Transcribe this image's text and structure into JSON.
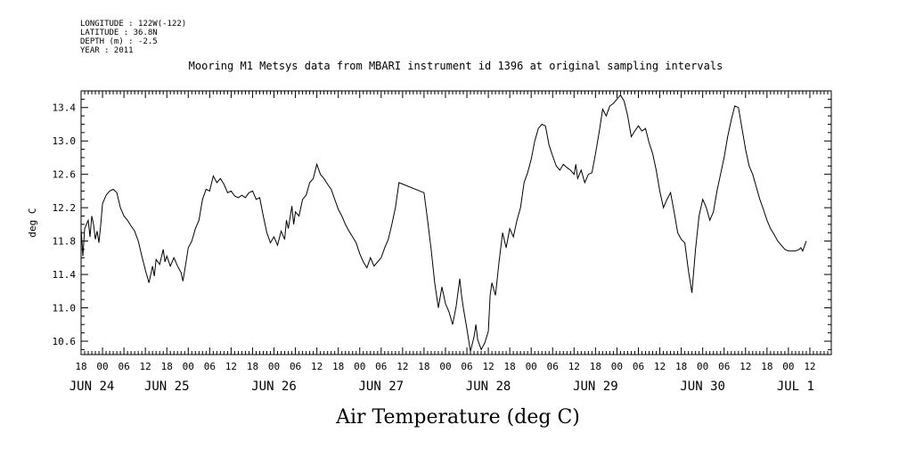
{
  "header": {
    "longitude": "LONGITUDE : 122W(-122)",
    "latitude": "LATITUDE : 36.8N",
    "depth": "DEPTH (m) : -2.5",
    "year": "YEAR : 2011"
  },
  "chart_data": {
    "type": "line",
    "title": "Mooring M1 Metsys data from MBARI instrument id 1396 at original sampling intervals",
    "xlabel": "Air Temperature (deg C)",
    "ylabel": "deg C",
    "ylim": [
      10.44,
      13.6
    ],
    "yticks": [
      10.6,
      11.0,
      11.4,
      11.8,
      12.2,
      12.6,
      13.0,
      13.4
    ],
    "ytick_labels": [
      "10.6",
      "11.0",
      "11.4",
      "11.8",
      "12.2",
      "12.6",
      "13.0",
      "13.4"
    ],
    "x_unit": "hours since JUN 24 00:00",
    "xlim": [
      -6,
      204
    ],
    "hour_ticks": [
      {
        "hour": -6,
        "label": "18"
      },
      {
        "hour": 0,
        "label": "00"
      },
      {
        "hour": 6,
        "label": "06"
      },
      {
        "hour": 12,
        "label": "12"
      },
      {
        "hour": 18,
        "label": "18"
      },
      {
        "hour": 24,
        "label": "00"
      },
      {
        "hour": 30,
        "label": "06"
      },
      {
        "hour": 36,
        "label": "12"
      },
      {
        "hour": 42,
        "label": "18"
      },
      {
        "hour": 48,
        "label": "00"
      },
      {
        "hour": 54,
        "label": "06"
      },
      {
        "hour": 60,
        "label": "12"
      },
      {
        "hour": 66,
        "label": "18"
      },
      {
        "hour": 72,
        "label": "00"
      },
      {
        "hour": 78,
        "label": "06"
      },
      {
        "hour": 84,
        "label": "12"
      },
      {
        "hour": 90,
        "label": "18"
      },
      {
        "hour": 96,
        "label": "00"
      },
      {
        "hour": 102,
        "label": "06"
      },
      {
        "hour": 108,
        "label": "12"
      },
      {
        "hour": 114,
        "label": "18"
      },
      {
        "hour": 120,
        "label": "00"
      },
      {
        "hour": 126,
        "label": "06"
      },
      {
        "hour": 132,
        "label": "12"
      },
      {
        "hour": 138,
        "label": "18"
      },
      {
        "hour": 144,
        "label": "00"
      },
      {
        "hour": 150,
        "label": "06"
      },
      {
        "hour": 156,
        "label": "12"
      },
      {
        "hour": 162,
        "label": "18"
      },
      {
        "hour": 168,
        "label": "00"
      },
      {
        "hour": 174,
        "label": "06"
      },
      {
        "hour": 180,
        "label": "12"
      },
      {
        "hour": 186,
        "label": "18"
      },
      {
        "hour": 192,
        "label": "00"
      },
      {
        "hour": 198,
        "label": "12"
      }
    ],
    "date_labels": [
      {
        "hour": -3,
        "label": "JUN 24"
      },
      {
        "hour": 18,
        "label": "JUN 25"
      },
      {
        "hour": 48,
        "label": "JUN 26"
      },
      {
        "hour": 78,
        "label": "JUN 27"
      },
      {
        "hour": 108,
        "label": "JUN 28"
      },
      {
        "hour": 138,
        "label": "JUN 29"
      },
      {
        "hour": 168,
        "label": "JUN 30"
      },
      {
        "hour": 194,
        "label": "JUL  1"
      }
    ],
    "series": [
      {
        "points": [
          [
            -6,
            11.95
          ],
          [
            -5.5,
            11.62
          ],
          [
            -5,
            11.95
          ],
          [
            -4,
            12.05
          ],
          [
            -3.5,
            11.85
          ],
          [
            -3,
            12.1
          ],
          [
            -2.5,
            12.0
          ],
          [
            -2,
            11.82
          ],
          [
            -1.5,
            11.92
          ],
          [
            -1,
            11.78
          ],
          [
            -0.5,
            12.0
          ],
          [
            0,
            12.25
          ],
          [
            1,
            12.35
          ],
          [
            2,
            12.4
          ],
          [
            3,
            12.42
          ],
          [
            4,
            12.38
          ],
          [
            5,
            12.2
          ],
          [
            6,
            12.1
          ],
          [
            7,
            12.05
          ],
          [
            8,
            11.98
          ],
          [
            9,
            11.92
          ],
          [
            10,
            11.8
          ],
          [
            11,
            11.62
          ],
          [
            12,
            11.45
          ],
          [
            13,
            11.3
          ],
          [
            14,
            11.5
          ],
          [
            14.5,
            11.38
          ],
          [
            15,
            11.58
          ],
          [
            16,
            11.52
          ],
          [
            17,
            11.7
          ],
          [
            17.5,
            11.55
          ],
          [
            18,
            11.62
          ],
          [
            19,
            11.5
          ],
          [
            20,
            11.6
          ],
          [
            21,
            11.5
          ],
          [
            22,
            11.42
          ],
          [
            22.5,
            11.32
          ],
          [
            23,
            11.45
          ],
          [
            24,
            11.72
          ],
          [
            25,
            11.8
          ],
          [
            26,
            11.95
          ],
          [
            27,
            12.05
          ],
          [
            28,
            12.3
          ],
          [
            29,
            12.42
          ],
          [
            30,
            12.4
          ],
          [
            31,
            12.58
          ],
          [
            32,
            12.5
          ],
          [
            33,
            12.55
          ],
          [
            34,
            12.48
          ],
          [
            35,
            12.38
          ],
          [
            36,
            12.4
          ],
          [
            37,
            12.34
          ],
          [
            38,
            12.32
          ],
          [
            39,
            12.35
          ],
          [
            40,
            12.32
          ],
          [
            41,
            12.38
          ],
          [
            42,
            12.4
          ],
          [
            43,
            12.3
          ],
          [
            44,
            12.32
          ],
          [
            45,
            12.1
          ],
          [
            46,
            11.9
          ],
          [
            47,
            11.78
          ],
          [
            48,
            11.85
          ],
          [
            49,
            11.75
          ],
          [
            50,
            11.92
          ],
          [
            51,
            11.82
          ],
          [
            51.5,
            12.05
          ],
          [
            52,
            11.95
          ],
          [
            53,
            12.22
          ],
          [
            53.5,
            12.0
          ],
          [
            54,
            12.15
          ],
          [
            55,
            12.1
          ],
          [
            56,
            12.3
          ],
          [
            57,
            12.35
          ],
          [
            58,
            12.5
          ],
          [
            59,
            12.55
          ],
          [
            60,
            12.72
          ],
          [
            61,
            12.6
          ],
          [
            62,
            12.55
          ],
          [
            63,
            12.48
          ],
          [
            64,
            12.42
          ],
          [
            65,
            12.3
          ],
          [
            66,
            12.18
          ],
          [
            67,
            12.1
          ],
          [
            68,
            12.0
          ],
          [
            69,
            11.92
          ],
          [
            70,
            11.85
          ],
          [
            71,
            11.78
          ],
          [
            72,
            11.65
          ],
          [
            73,
            11.55
          ],
          [
            74,
            11.48
          ],
          [
            75,
            11.6
          ],
          [
            76,
            11.5
          ],
          [
            77,
            11.55
          ],
          [
            78,
            11.6
          ],
          [
            79,
            11.72
          ],
          [
            80,
            11.82
          ],
          [
            81,
            12.0
          ],
          [
            82,
            12.2
          ],
          [
            83,
            12.5
          ],
          [
            90,
            12.38
          ],
          [
            91,
            12.05
          ],
          [
            92,
            11.7
          ],
          [
            93,
            11.3
          ],
          [
            94,
            11.0
          ],
          [
            95,
            11.25
          ],
          [
            96,
            11.05
          ],
          [
            97,
            10.95
          ],
          [
            98,
            10.8
          ],
          [
            99,
            11.02
          ],
          [
            100,
            11.35
          ],
          [
            100.5,
            11.15
          ],
          [
            101,
            11.0
          ],
          [
            102,
            10.75
          ],
          [
            103,
            10.48
          ],
          [
            104,
            10.65
          ],
          [
            104.5,
            10.8
          ],
          [
            105,
            10.62
          ],
          [
            106,
            10.5
          ],
          [
            107,
            10.58
          ],
          [
            108,
            10.72
          ],
          [
            108.5,
            11.15
          ],
          [
            109,
            11.3
          ],
          [
            110,
            11.15
          ],
          [
            111,
            11.55
          ],
          [
            112,
            11.9
          ],
          [
            113,
            11.72
          ],
          [
            114,
            11.95
          ],
          [
            115,
            11.85
          ],
          [
            116,
            12.05
          ],
          [
            117,
            12.2
          ],
          [
            118,
            12.5
          ],
          [
            119,
            12.62
          ],
          [
            120,
            12.78
          ],
          [
            121,
            13.0
          ],
          [
            122,
            13.15
          ],
          [
            123,
            13.2
          ],
          [
            124,
            13.18
          ],
          [
            125,
            12.95
          ],
          [
            126,
            12.82
          ],
          [
            127,
            12.7
          ],
          [
            128,
            12.65
          ],
          [
            129,
            12.72
          ],
          [
            130,
            12.68
          ],
          [
            131,
            12.65
          ],
          [
            132,
            12.6
          ],
          [
            132.5,
            12.72
          ],
          [
            133,
            12.55
          ],
          [
            134,
            12.65
          ],
          [
            135,
            12.5
          ],
          [
            136,
            12.6
          ],
          [
            137,
            12.62
          ],
          [
            138,
            12.85
          ],
          [
            139,
            13.1
          ],
          [
            140,
            13.38
          ],
          [
            141,
            13.3
          ],
          [
            142,
            13.42
          ],
          [
            143,
            13.45
          ],
          [
            144,
            13.5
          ],
          [
            145,
            13.55
          ],
          [
            146,
            13.48
          ],
          [
            147,
            13.3
          ],
          [
            148,
            13.05
          ],
          [
            149,
            13.12
          ],
          [
            150,
            13.18
          ],
          [
            151,
            13.12
          ],
          [
            152,
            13.15
          ],
          [
            153,
            12.98
          ],
          [
            154,
            12.85
          ],
          [
            155,
            12.65
          ],
          [
            156,
            12.4
          ],
          [
            157,
            12.2
          ],
          [
            158,
            12.3
          ],
          [
            159,
            12.38
          ],
          [
            160,
            12.15
          ],
          [
            161,
            11.9
          ],
          [
            162,
            11.82
          ],
          [
            163,
            11.78
          ],
          [
            164,
            11.45
          ],
          [
            165,
            11.18
          ],
          [
            166,
            11.7
          ],
          [
            167,
            12.1
          ],
          [
            168,
            12.3
          ],
          [
            169,
            12.2
          ],
          [
            170,
            12.05
          ],
          [
            171,
            12.15
          ],
          [
            172,
            12.4
          ],
          [
            173,
            12.6
          ],
          [
            174,
            12.8
          ],
          [
            175,
            13.05
          ],
          [
            176,
            13.25
          ],
          [
            177,
            13.42
          ],
          [
            178,
            13.4
          ],
          [
            179,
            13.15
          ],
          [
            180,
            12.9
          ],
          [
            181,
            12.7
          ],
          [
            182,
            12.6
          ],
          [
            183,
            12.45
          ],
          [
            184,
            12.3
          ],
          [
            185,
            12.18
          ],
          [
            186,
            12.05
          ],
          [
            187,
            11.95
          ],
          [
            188,
            11.88
          ],
          [
            189,
            11.8
          ],
          [
            190,
            11.75
          ],
          [
            191,
            11.7
          ],
          [
            192,
            11.68
          ],
          [
            193,
            11.68
          ],
          [
            194,
            11.68
          ],
          [
            195,
            11.7
          ],
          [
            195.5,
            11.72
          ],
          [
            196,
            11.68
          ],
          [
            197,
            11.8
          ]
        ]
      }
    ]
  }
}
